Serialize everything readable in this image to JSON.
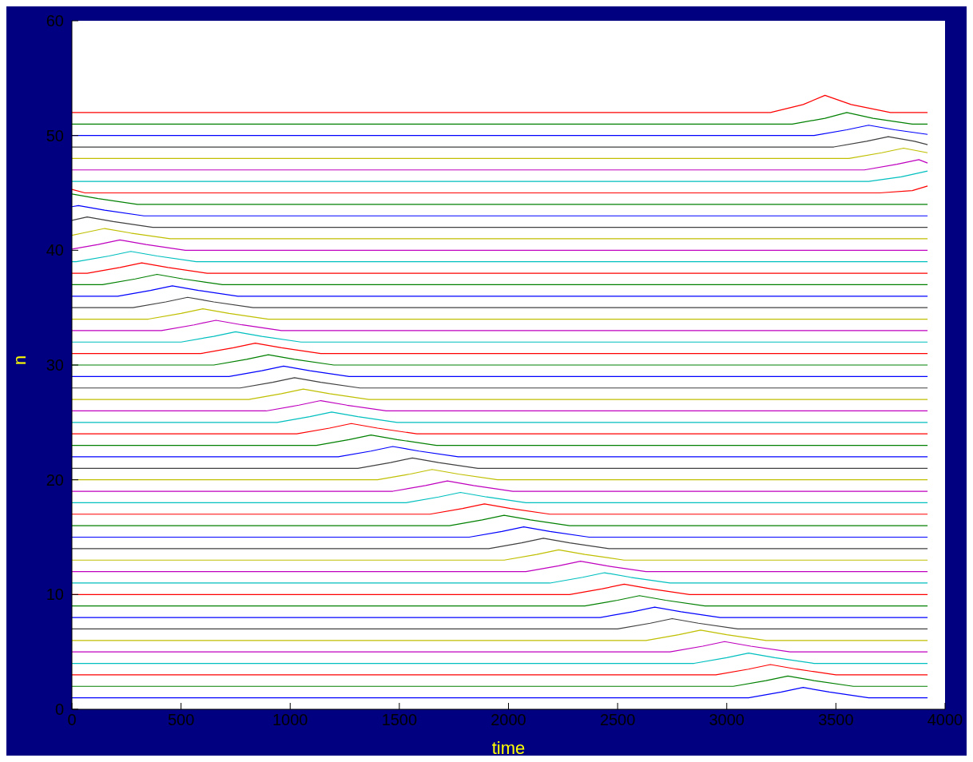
{
  "chart_data": {
    "type": "line",
    "xlabel": "time",
    "ylabel": "n",
    "xlim": [
      0,
      4000
    ],
    "xticks": [
      0,
      500,
      1000,
      1500,
      2000,
      2500,
      3000,
      3500,
      4000
    ],
    "ylim": [
      0,
      60
    ],
    "yticks": [
      0,
      10,
      20,
      30,
      40,
      50,
      60
    ],
    "marker": "none",
    "line_style": "solid",
    "series": [
      {
        "color": "#0000ff",
        "x": [
          0,
          3100,
          3250,
          3350,
          3470,
          3650,
          3920
        ],
        "values": [
          1,
          1,
          1.5,
          1.9,
          1.5,
          1,
          1
        ]
      },
      {
        "color": "#008000",
        "x": [
          0,
          3030,
          3180,
          3280,
          3400,
          3580,
          3920
        ],
        "values": [
          2,
          2,
          2.5,
          2.9,
          2.5,
          2,
          2
        ]
      },
      {
        "color": "#ff0000",
        "x": [
          0,
          2950,
          3100,
          3200,
          3320,
          3500,
          3920
        ],
        "values": [
          3,
          3,
          3.5,
          3.9,
          3.5,
          3,
          3
        ]
      },
      {
        "color": "#00bfbf",
        "x": [
          0,
          2850,
          3000,
          3100,
          3220,
          3400,
          3920
        ],
        "values": [
          4,
          4,
          4.5,
          4.9,
          4.5,
          4,
          4
        ]
      },
      {
        "color": "#bf00bf",
        "x": [
          0,
          2740,
          2890,
          2990,
          3110,
          3290,
          3920
        ],
        "values": [
          5,
          5,
          5.5,
          5.9,
          5.5,
          5,
          5
        ]
      },
      {
        "color": "#bfbf00",
        "x": [
          0,
          2630,
          2780,
          2880,
          3000,
          3180,
          3920
        ],
        "values": [
          6,
          6,
          6.5,
          6.9,
          6.5,
          6,
          6
        ]
      },
      {
        "color": "#404040",
        "x": [
          0,
          2500,
          2650,
          2750,
          2870,
          3050,
          3920
        ],
        "values": [
          7,
          7,
          7.5,
          7.9,
          7.5,
          7,
          7
        ]
      },
      {
        "color": "#0000ff",
        "x": [
          0,
          2420,
          2570,
          2670,
          2790,
          2970,
          3920
        ],
        "values": [
          8,
          8,
          8.5,
          8.9,
          8.5,
          8,
          8
        ]
      },
      {
        "color": "#008000",
        "x": [
          0,
          2350,
          2500,
          2600,
          2720,
          2900,
          3920
        ],
        "values": [
          9,
          9,
          9.5,
          9.9,
          9.5,
          9,
          9
        ]
      },
      {
        "color": "#ff0000",
        "x": [
          0,
          2280,
          2430,
          2530,
          2650,
          2830,
          3920
        ],
        "values": [
          10,
          10,
          10.5,
          10.9,
          10.5,
          10,
          10
        ]
      },
      {
        "color": "#00bfbf",
        "x": [
          0,
          2190,
          2340,
          2440,
          2560,
          2740,
          3920
        ],
        "values": [
          11,
          11,
          11.5,
          11.9,
          11.5,
          11,
          11
        ]
      },
      {
        "color": "#bf00bf",
        "x": [
          0,
          2080,
          2230,
          2330,
          2450,
          2630,
          3920
        ],
        "values": [
          12,
          12,
          12.5,
          12.9,
          12.5,
          12,
          12
        ]
      },
      {
        "color": "#bfbf00",
        "x": [
          0,
          1980,
          2130,
          2230,
          2350,
          2530,
          3920
        ],
        "values": [
          13,
          13,
          13.5,
          13.9,
          13.5,
          13,
          13
        ]
      },
      {
        "color": "#404040",
        "x": [
          0,
          1910,
          2060,
          2160,
          2280,
          2460,
          3920
        ],
        "values": [
          14,
          14,
          14.5,
          14.9,
          14.5,
          14,
          14
        ]
      },
      {
        "color": "#0000ff",
        "x": [
          0,
          1820,
          1970,
          2070,
          2190,
          2370,
          3920
        ],
        "values": [
          15,
          15,
          15.5,
          15.9,
          15.5,
          15,
          15
        ]
      },
      {
        "color": "#008000",
        "x": [
          0,
          1730,
          1880,
          1980,
          2100,
          2280,
          3920
        ],
        "values": [
          16,
          16,
          16.5,
          16.9,
          16.5,
          16,
          16
        ]
      },
      {
        "color": "#ff0000",
        "x": [
          0,
          1640,
          1790,
          1890,
          2010,
          2190,
          3920
        ],
        "values": [
          17,
          17,
          17.5,
          17.9,
          17.5,
          17,
          17
        ]
      },
      {
        "color": "#00bfbf",
        "x": [
          0,
          1530,
          1680,
          1780,
          1900,
          2080,
          3920
        ],
        "values": [
          18,
          18,
          18.5,
          18.9,
          18.5,
          18,
          18
        ]
      },
      {
        "color": "#bf00bf",
        "x": [
          0,
          1470,
          1620,
          1720,
          1840,
          2020,
          3920
        ],
        "values": [
          19,
          19,
          19.5,
          19.9,
          19.5,
          19,
          19
        ]
      },
      {
        "color": "#bfbf00",
        "x": [
          0,
          1400,
          1550,
          1650,
          1770,
          1950,
          3920
        ],
        "values": [
          20,
          20,
          20.5,
          20.9,
          20.5,
          20,
          20
        ]
      },
      {
        "color": "#404040",
        "x": [
          0,
          1310,
          1460,
          1560,
          1680,
          1860,
          3920
        ],
        "values": [
          21,
          21,
          21.5,
          21.9,
          21.5,
          21,
          21
        ]
      },
      {
        "color": "#0000ff",
        "x": [
          0,
          1220,
          1370,
          1470,
          1590,
          1770,
          3920
        ],
        "values": [
          22,
          22,
          22.5,
          22.9,
          22.5,
          22,
          22
        ]
      },
      {
        "color": "#008000",
        "x": [
          0,
          1120,
          1270,
          1370,
          1490,
          1670,
          3920
        ],
        "values": [
          23,
          23,
          23.5,
          23.9,
          23.5,
          23,
          23
        ]
      },
      {
        "color": "#ff0000",
        "x": [
          0,
          1030,
          1180,
          1280,
          1400,
          1580,
          3920
        ],
        "values": [
          24,
          24,
          24.5,
          24.9,
          24.5,
          24,
          24
        ]
      },
      {
        "color": "#00bfbf",
        "x": [
          0,
          940,
          1090,
          1190,
          1310,
          1490,
          3920
        ],
        "values": [
          25,
          25,
          25.5,
          25.9,
          25.5,
          25,
          25
        ]
      },
      {
        "color": "#bf00bf",
        "x": [
          0,
          890,
          1040,
          1140,
          1260,
          1440,
          3920
        ],
        "values": [
          26,
          26,
          26.5,
          26.9,
          26.5,
          26,
          26
        ]
      },
      {
        "color": "#bfbf00",
        "x": [
          0,
          810,
          960,
          1060,
          1180,
          1360,
          3920
        ],
        "values": [
          27,
          27,
          27.5,
          27.9,
          27.5,
          27,
          27
        ]
      },
      {
        "color": "#404040",
        "x": [
          0,
          770,
          920,
          1020,
          1140,
          1320,
          3920
        ],
        "values": [
          28,
          28,
          28.5,
          28.9,
          28.5,
          28,
          28
        ]
      },
      {
        "color": "#0000ff",
        "x": [
          0,
          720,
          870,
          970,
          1090,
          1270,
          3920
        ],
        "values": [
          29,
          29,
          29.5,
          29.9,
          29.5,
          29,
          29
        ]
      },
      {
        "color": "#008000",
        "x": [
          0,
          650,
          800,
          900,
          1020,
          1200,
          3920
        ],
        "values": [
          30,
          30,
          30.5,
          30.9,
          30.5,
          30,
          30
        ]
      },
      {
        "color": "#ff0000",
        "x": [
          0,
          590,
          740,
          840,
          960,
          1140,
          3920
        ],
        "values": [
          31,
          31,
          31.5,
          31.9,
          31.5,
          31,
          31
        ]
      },
      {
        "color": "#00bfbf",
        "x": [
          0,
          500,
          650,
          750,
          870,
          1050,
          3920
        ],
        "values": [
          32,
          32,
          32.5,
          32.9,
          32.5,
          32,
          32
        ]
      },
      {
        "color": "#bf00bf",
        "x": [
          0,
          410,
          560,
          660,
          780,
          960,
          3920
        ],
        "values": [
          33,
          33,
          33.5,
          33.9,
          33.5,
          33,
          33
        ]
      },
      {
        "color": "#bfbf00",
        "x": [
          0,
          350,
          500,
          600,
          720,
          900,
          3920
        ],
        "values": [
          34,
          34,
          34.5,
          34.9,
          34.5,
          34,
          34
        ]
      },
      {
        "color": "#404040",
        "x": [
          0,
          280,
          430,
          530,
          650,
          830,
          3920
        ],
        "values": [
          35,
          35,
          35.5,
          35.9,
          35.5,
          35,
          35
        ]
      },
      {
        "color": "#0000ff",
        "x": [
          0,
          210,
          360,
          460,
          580,
          760,
          3920
        ],
        "values": [
          36,
          36,
          36.5,
          36.9,
          36.5,
          36,
          36
        ]
      },
      {
        "color": "#008000",
        "x": [
          0,
          140,
          290,
          390,
          510,
          690,
          3920
        ],
        "values": [
          37,
          37,
          37.5,
          37.9,
          37.5,
          37,
          37
        ]
      },
      {
        "color": "#ff0000",
        "x": [
          0,
          70,
          220,
          320,
          440,
          620,
          3920
        ],
        "values": [
          38,
          38,
          38.5,
          38.9,
          38.5,
          38,
          38
        ]
      },
      {
        "color": "#00bfbf",
        "x": [
          0,
          20,
          170,
          270,
          390,
          570,
          3920
        ],
        "values": [
          39,
          39,
          39.5,
          39.9,
          39.5,
          39,
          39
        ]
      },
      {
        "color": "#bf00bf",
        "x": [
          0,
          120,
          220,
          340,
          520,
          3920
        ],
        "values": [
          40.1,
          40.5,
          40.9,
          40.5,
          40,
          40
        ]
      },
      {
        "color": "#bfbf00",
        "x": [
          0,
          50,
          150,
          270,
          450,
          3920
        ],
        "values": [
          41.3,
          41.5,
          41.9,
          41.5,
          41,
          41
        ]
      },
      {
        "color": "#404040",
        "x": [
          0,
          70,
          190,
          370,
          3920
        ],
        "values": [
          42.6,
          42.9,
          42.5,
          42,
          42
        ]
      },
      {
        "color": "#0000ff",
        "x": [
          0,
          30,
          150,
          330,
          3920
        ],
        "values": [
          43.8,
          43.9,
          43.5,
          43,
          43
        ]
      },
      {
        "color": "#008000",
        "x": [
          0,
          120,
          300,
          3920
        ],
        "values": [
          44.9,
          44.5,
          44,
          44
        ]
      },
      {
        "color": "#ff0000",
        "x": [
          0,
          60,
          3700,
          3850,
          3920
        ],
        "values": [
          45.3,
          45,
          45,
          45.2,
          45.6
        ]
      },
      {
        "color": "#00bfbf",
        "x": [
          0,
          3650,
          3800,
          3920
        ],
        "values": [
          46,
          46,
          46.4,
          46.9
        ]
      },
      {
        "color": "#bf00bf",
        "x": [
          0,
          3630,
          3780,
          3880,
          3920
        ],
        "values": [
          47,
          47,
          47.5,
          47.9,
          47.6
        ]
      },
      {
        "color": "#bfbf00",
        "x": [
          0,
          3560,
          3710,
          3810,
          3920
        ],
        "values": [
          48,
          48,
          48.5,
          48.9,
          48.5
        ]
      },
      {
        "color": "#404040",
        "x": [
          0,
          3490,
          3640,
          3740,
          3860,
          3920
        ],
        "values": [
          49,
          49,
          49.5,
          49.9,
          49.5,
          49.2
        ]
      },
      {
        "color": "#0000ff",
        "x": [
          0,
          3400,
          3550,
          3650,
          3770,
          3920
        ],
        "values": [
          50,
          50,
          50.5,
          50.9,
          50.5,
          50.1
        ]
      },
      {
        "color": "#008000",
        "x": [
          0,
          3300,
          3450,
          3550,
          3670,
          3850,
          3920
        ],
        "values": [
          51,
          51,
          51.5,
          52,
          51.5,
          51,
          51
        ]
      },
      {
        "color": "#ff0000",
        "x": [
          0,
          3200,
          3350,
          3450,
          3570,
          3750,
          3920
        ],
        "values": [
          52,
          52,
          52.7,
          53.5,
          52.7,
          52,
          52
        ]
      }
    ]
  }
}
